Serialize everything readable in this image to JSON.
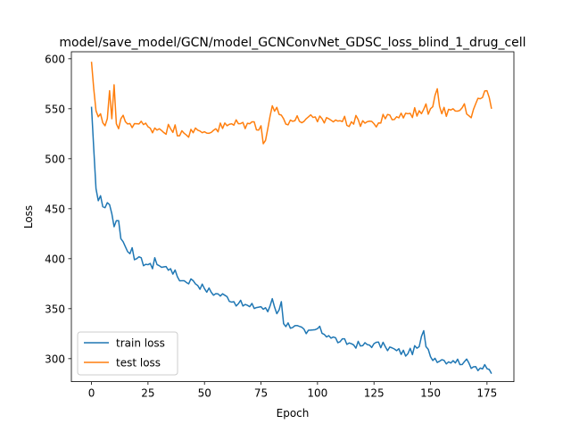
{
  "chart_data": {
    "type": "line",
    "title": "model/save_model/GCN/model_GCNConvNet_GDSC_loss_blind_1_drug_cell",
    "xlabel": "Epoch",
    "ylabel": "Loss",
    "xlim": [
      -8.9,
      186.9
    ],
    "ylim": [
      277,
      607
    ],
    "xticks": [
      0,
      25,
      50,
      75,
      100,
      125,
      150,
      175
    ],
    "yticks": [
      300,
      350,
      400,
      450,
      500,
      550,
      600
    ],
    "grid": false,
    "legend_position": "lower left",
    "series": [
      {
        "name": "train loss",
        "color": "#1f77b4",
        "anchors": [
          [
            0,
            552
          ],
          [
            1,
            510
          ],
          [
            2,
            470
          ],
          [
            3,
            458
          ],
          [
            4,
            463
          ],
          [
            5,
            452
          ],
          [
            6,
            451
          ],
          [
            7,
            456
          ],
          [
            8,
            454
          ],
          [
            9,
            445
          ],
          [
            10,
            432
          ],
          [
            11,
            438
          ],
          [
            12,
            438
          ],
          [
            13,
            420
          ],
          [
            14,
            417
          ],
          [
            15,
            412
          ],
          [
            16,
            407
          ],
          [
            17,
            405
          ],
          [
            18,
            411
          ],
          [
            19,
            399
          ],
          [
            20,
            400
          ],
          [
            25,
            394
          ],
          [
            27,
            390
          ],
          [
            28,
            401
          ],
          [
            30,
            393
          ],
          [
            35,
            390
          ],
          [
            40,
            378
          ],
          [
            45,
            378
          ],
          [
            50,
            370
          ],
          [
            55,
            365
          ],
          [
            60,
            362
          ],
          [
            65,
            355
          ],
          [
            70,
            352
          ],
          [
            75,
            352
          ],
          [
            78,
            347
          ],
          [
            80,
            360
          ],
          [
            82,
            345
          ],
          [
            84,
            357
          ],
          [
            85,
            335
          ],
          [
            90,
            333
          ],
          [
            95,
            325
          ],
          [
            100,
            330
          ],
          [
            105,
            323
          ],
          [
            110,
            317
          ],
          [
            115,
            315
          ],
          [
            120,
            313
          ],
          [
            125,
            315
          ],
          [
            130,
            312
          ],
          [
            135,
            308
          ],
          [
            140,
            305
          ],
          [
            145,
            312
          ],
          [
            147,
            328
          ],
          [
            148,
            312
          ],
          [
            150,
            302
          ],
          [
            155,
            299
          ],
          [
            160,
            298
          ],
          [
            165,
            297
          ],
          [
            170,
            292
          ],
          [
            175,
            290
          ],
          [
            177,
            285
          ]
        ],
        "noise": 4
      },
      {
        "name": "test loss",
        "color": "#ff7f0e",
        "anchors": [
          [
            0,
            597
          ],
          [
            1,
            570
          ],
          [
            2,
            548
          ],
          [
            3,
            542
          ],
          [
            4,
            545
          ],
          [
            5,
            536
          ],
          [
            6,
            533
          ],
          [
            7,
            540
          ],
          [
            8,
            568
          ],
          [
            9,
            540
          ],
          [
            10,
            574
          ],
          [
            11,
            535
          ],
          [
            12,
            530
          ],
          [
            13,
            540
          ],
          [
            15,
            537
          ],
          [
            20,
            535
          ],
          [
            25,
            532
          ],
          [
            30,
            530
          ],
          [
            35,
            530
          ],
          [
            40,
            528
          ],
          [
            45,
            526
          ],
          [
            50,
            527
          ],
          [
            55,
            530
          ],
          [
            60,
            533
          ],
          [
            65,
            535
          ],
          [
            70,
            535
          ],
          [
            75,
            533
          ],
          [
            76,
            515
          ],
          [
            78,
            530
          ],
          [
            80,
            553
          ],
          [
            85,
            540
          ],
          [
            90,
            538
          ],
          [
            95,
            540
          ],
          [
            100,
            537
          ],
          [
            105,
            540
          ],
          [
            110,
            538
          ],
          [
            115,
            537
          ],
          [
            120,
            538
          ],
          [
            125,
            535
          ],
          [
            130,
            540
          ],
          [
            135,
            542
          ],
          [
            140,
            545
          ],
          [
            145,
            548
          ],
          [
            150,
            550
          ],
          [
            153,
            570
          ],
          [
            155,
            545
          ],
          [
            160,
            550
          ],
          [
            165,
            555
          ],
          [
            168,
            541
          ],
          [
            170,
            555
          ],
          [
            172,
            560
          ],
          [
            175,
            568
          ],
          [
            177,
            550
          ]
        ],
        "noise": 6
      }
    ],
    "epochs": 178
  }
}
